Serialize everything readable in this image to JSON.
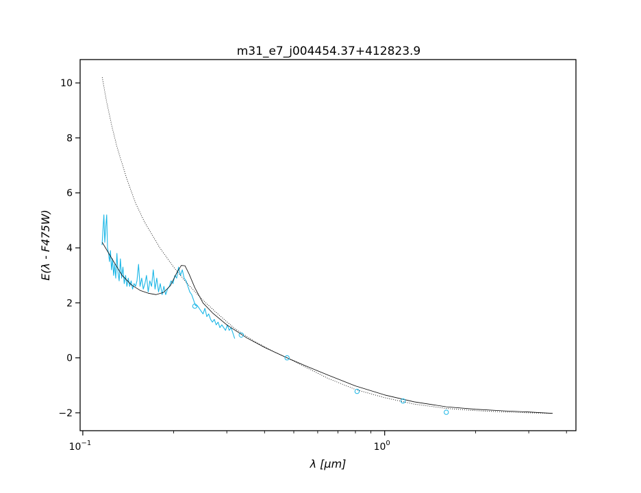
{
  "chart_data": {
    "type": "line",
    "title": "m31_e7_j004454.37+412823.9",
    "xlabel": "λ [μm]",
    "ylabel": "E(λ - F475W)",
    "xscale": "log",
    "xlim": [
      0.098,
      4.3
    ],
    "ylim": [
      -2.65,
      10.85
    ],
    "x_ticks_major": [
      {
        "value": 0.1,
        "label": "10",
        "exp": "−1"
      },
      {
        "value": 1.0,
        "label": "10",
        "exp": "0"
      }
    ],
    "y_ticks": [
      {
        "value": -2,
        "label": "−2"
      },
      {
        "value": 0,
        "label": "0"
      },
      {
        "value": 2,
        "label": "2"
      },
      {
        "value": 4,
        "label": "4"
      },
      {
        "value": 6,
        "label": "6"
      },
      {
        "value": 8,
        "label": "8"
      },
      {
        "value": 10,
        "label": "10"
      }
    ],
    "colors": {
      "spectrum": "#1ab6e6",
      "model": "#000000",
      "points": "#1ab6e6"
    },
    "series": [
      {
        "style": "spectrum",
        "x": [
          0.1158,
          0.1175,
          0.1183,
          0.1192,
          0.12,
          0.1208,
          0.1217,
          0.1226,
          0.1235,
          0.1245,
          0.1255,
          0.1265,
          0.1275,
          0.1286,
          0.1297,
          0.1308,
          0.132,
          0.1332,
          0.1345,
          0.1358,
          0.1372,
          0.1386,
          0.14,
          0.1415,
          0.143,
          0.1446,
          0.1462,
          0.1478,
          0.1495,
          0.1512,
          0.153,
          0.1548,
          0.1567,
          0.1586,
          0.1606,
          0.1626,
          0.1647,
          0.1668,
          0.169,
          0.1712,
          0.1735,
          0.1758,
          0.1782,
          0.1806,
          0.1831,
          0.1856,
          0.1882,
          0.1908,
          0.1935,
          0.1962,
          0.199,
          0.2018,
          0.2047,
          0.2076,
          0.2106,
          0.2136,
          0.2167,
          0.2198,
          0.223,
          0.2262,
          0.2295,
          0.2328,
          0.2362,
          0.2396,
          0.2431,
          0.2466,
          0.2502,
          0.2538,
          0.2575,
          0.2612,
          0.265,
          0.2688,
          0.2727,
          0.2766,
          0.2806,
          0.2846,
          0.2887,
          0.2928,
          0.297,
          0.3012,
          0.3055,
          0.3098,
          0.3142,
          0.3186
        ],
        "y": [
          4.1,
          5.2,
          4.2,
          4.8,
          5.2,
          4.0,
          3.8,
          3.5,
          3.9,
          3.2,
          3.6,
          3.0,
          3.4,
          2.9,
          3.8,
          3.1,
          2.8,
          3.6,
          2.9,
          3.3,
          2.7,
          3.0,
          2.6,
          2.9,
          2.6,
          2.8,
          2.5,
          2.7,
          2.6,
          2.8,
          3.4,
          2.6,
          2.9,
          2.5,
          2.7,
          3.0,
          2.4,
          2.8,
          2.6,
          3.2,
          2.5,
          2.9,
          2.4,
          2.7,
          2.3,
          2.6,
          2.3,
          2.5,
          2.6,
          2.8,
          2.7,
          3.0,
          2.9,
          3.3,
          3.0,
          3.2,
          2.9,
          2.8,
          2.6,
          2.4,
          2.3,
          2.1,
          1.9,
          1.9,
          1.8,
          1.7,
          1.6,
          1.8,
          1.5,
          1.6,
          1.4,
          1.3,
          1.4,
          1.2,
          1.3,
          1.1,
          1.2,
          1.1,
          1.0,
          1.2,
          1.0,
          1.1,
          0.9,
          0.7
        ]
      },
      {
        "style": "model",
        "x": [
          0.116,
          0.125,
          0.135,
          0.145,
          0.155,
          0.165,
          0.175,
          0.185,
          0.195,
          0.205,
          0.212,
          0.218,
          0.225,
          0.235,
          0.25,
          0.27,
          0.3,
          0.35,
          0.4,
          0.475,
          0.55,
          0.65,
          0.8,
          1.0,
          1.25,
          1.6,
          2.0,
          2.5,
          3.0,
          3.6
        ],
        "y": [
          4.2,
          3.6,
          3.0,
          2.65,
          2.45,
          2.35,
          2.3,
          2.38,
          2.62,
          3.1,
          3.36,
          3.35,
          3.05,
          2.55,
          2.0,
          1.62,
          1.2,
          0.72,
          0.38,
          0.0,
          -0.3,
          -0.63,
          -1.02,
          -1.35,
          -1.6,
          -1.78,
          -1.87,
          -1.93,
          -1.97,
          -2.02
        ]
      },
      {
        "style": "dotted",
        "x": [
          0.116,
          0.12,
          0.125,
          0.13,
          0.14,
          0.15,
          0.16,
          0.18,
          0.2,
          0.22,
          0.25,
          0.28,
          0.32,
          0.37,
          0.43,
          0.475,
          0.55,
          0.65,
          0.8,
          1.0,
          1.25,
          1.6,
          2.0,
          2.5,
          3.0,
          3.6
        ],
        "y": [
          10.2,
          9.3,
          8.4,
          7.65,
          6.5,
          5.6,
          4.95,
          4.0,
          3.3,
          2.75,
          2.1,
          1.6,
          1.05,
          0.6,
          0.22,
          0.0,
          -0.35,
          -0.75,
          -1.15,
          -1.45,
          -1.68,
          -1.84,
          -1.92,
          -1.97,
          -2.0,
          -2.02
        ]
      },
      {
        "style": "points",
        "x": [
          0.235,
          0.335,
          0.475,
          0.81,
          1.15,
          1.6
        ],
        "y": [
          1.88,
          0.83,
          0.0,
          -1.22,
          -1.57,
          -1.98
        ]
      }
    ]
  }
}
